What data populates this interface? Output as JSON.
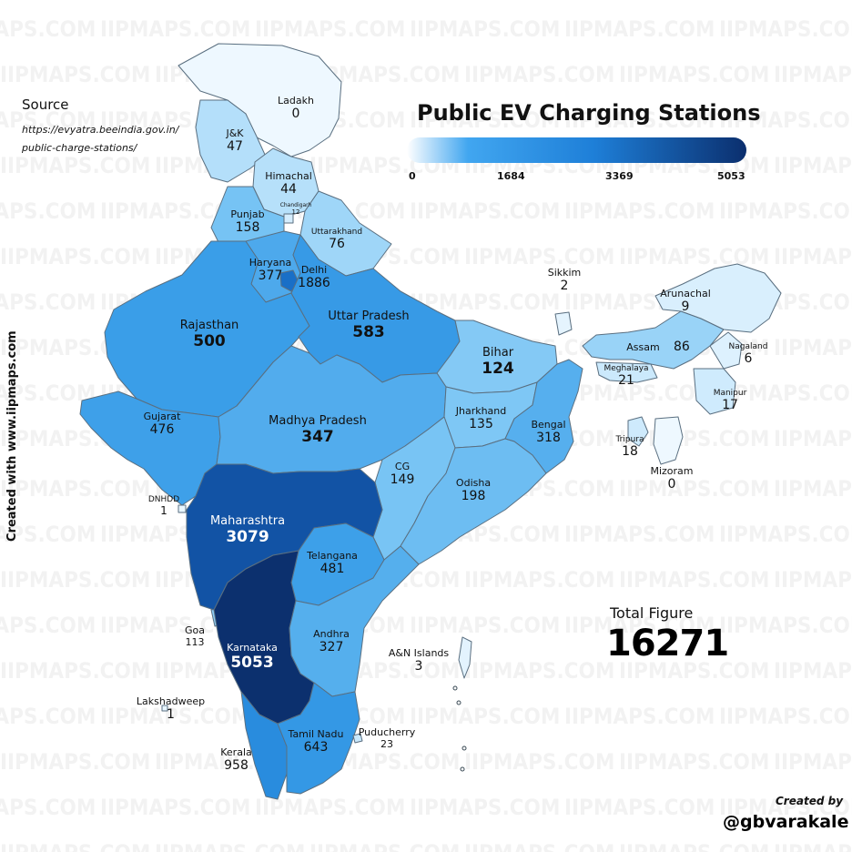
{
  "watermark": "IIPMAPS.COM",
  "source": {
    "title": "Source",
    "url_line1": "https://evyatra.beeindia.gov.in/",
    "url_line2": "public-charge-stations/"
  },
  "title": "Public EV Charging Stations",
  "legend": {
    "ticks": [
      "0",
      "1684",
      "3369",
      "5053"
    ]
  },
  "vertical_credit": "Created with www.iipmaps.com",
  "total": {
    "label": "Total Figure",
    "value": "16271"
  },
  "credit": {
    "created_by": "Created by",
    "handle": "@gbvarakale"
  },
  "colors": {
    "scale_low": "#ffffff",
    "scale_high": "#0b2f6e",
    "border": "#5a6f80"
  },
  "regions": [
    {
      "name": "Ladakh",
      "value": "0"
    },
    {
      "name": "J&K",
      "value": "47"
    },
    {
      "name": "Himachal",
      "value": "44"
    },
    {
      "name": "Chandigarh",
      "value": "12"
    },
    {
      "name": "Punjab",
      "value": "158"
    },
    {
      "name": "Uttarakhand",
      "value": "76"
    },
    {
      "name": "Haryana",
      "value": "377"
    },
    {
      "name": "Delhi",
      "value": "1886"
    },
    {
      "name": "Rajasthan",
      "value": "500"
    },
    {
      "name": "Uttar Pradesh",
      "value": "583"
    },
    {
      "name": "Bihar",
      "value": "124"
    },
    {
      "name": "Sikkim",
      "value": "2"
    },
    {
      "name": "Arunachal",
      "value": "9"
    },
    {
      "name": "Assam",
      "value": "86"
    },
    {
      "name": "Nagaland",
      "value": "6"
    },
    {
      "name": "Meghalaya",
      "value": "21"
    },
    {
      "name": "Manipur",
      "value": "17"
    },
    {
      "name": "Tripura",
      "value": "18"
    },
    {
      "name": "Mizoram",
      "value": "0"
    },
    {
      "name": "Gujarat",
      "value": "476"
    },
    {
      "name": "Madhya Pradesh",
      "value": "347"
    },
    {
      "name": "Jharkhand",
      "value": "135"
    },
    {
      "name": "Bengal",
      "value": "318"
    },
    {
      "name": "DNHDD",
      "value": "1"
    },
    {
      "name": "CG",
      "value": "149"
    },
    {
      "name": "Odisha",
      "value": "198"
    },
    {
      "name": "Maharashtra",
      "value": "3079"
    },
    {
      "name": "Telangana",
      "value": "481"
    },
    {
      "name": "Goa",
      "value": "113"
    },
    {
      "name": "Karnataka",
      "value": "5053"
    },
    {
      "name": "Andhra",
      "value": "327"
    },
    {
      "name": "A&N Islands",
      "value": "3"
    },
    {
      "name": "Lakshadweep",
      "value": "1"
    },
    {
      "name": "Tamil Nadu",
      "value": "643"
    },
    {
      "name": "Puducherry",
      "value": "23"
    },
    {
      "name": "Kerala",
      "value": "958"
    }
  ]
}
